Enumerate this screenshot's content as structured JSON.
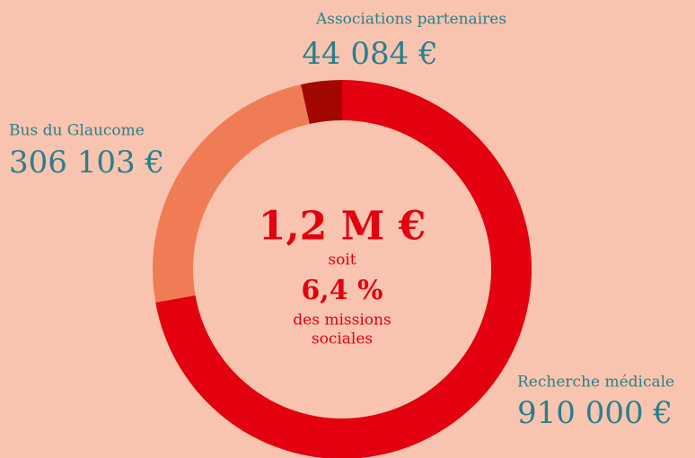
{
  "chart_data": {
    "type": "pie",
    "donut": true,
    "categories": [
      "Recherche médicale",
      "Bus du Glaucome",
      "Associations partenaires"
    ],
    "values": [
      910000,
      306103,
      44084
    ],
    "value_labels": [
      "910 000 €",
      "306 103 €",
      "44 084 €"
    ],
    "colors": [
      "#e3000f",
      "#f07c56",
      "#a30800"
    ],
    "center_lines": [
      "1,2 M €",
      "soit",
      "6,4 %",
      "des missions",
      "sociales"
    ]
  }
}
